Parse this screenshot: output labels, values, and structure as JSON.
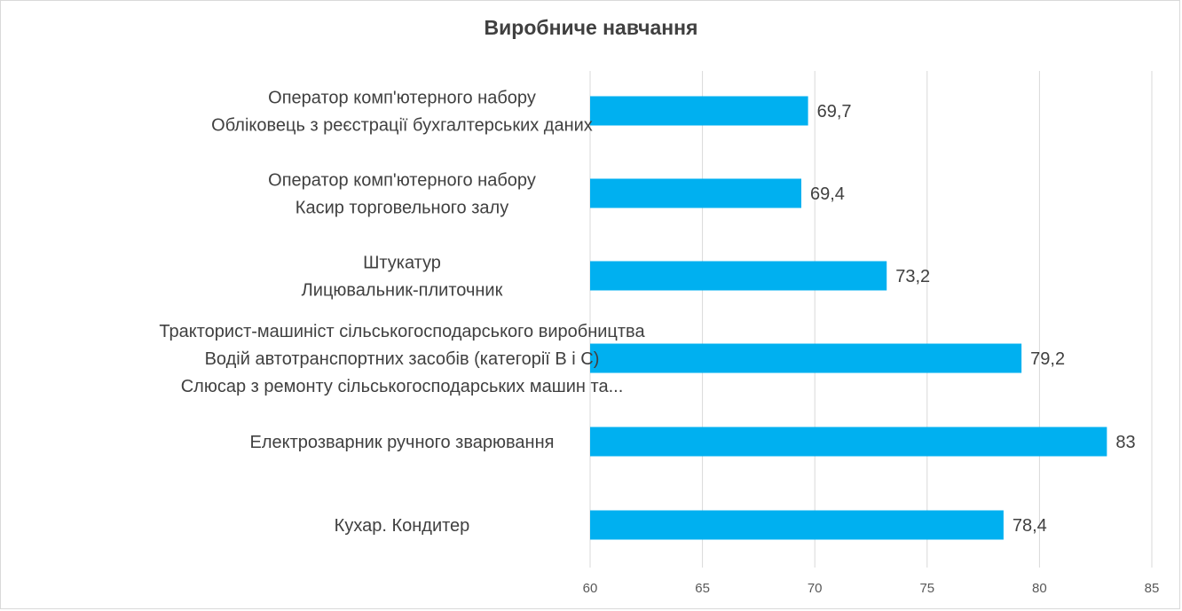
{
  "chart_data": {
    "type": "bar",
    "orientation": "horizontal",
    "title": "Виробниче навчання",
    "categories": [
      [
        "Оператор комп'ютерного набору",
        "Обліковець з реєстрації бухгалтерських даних"
      ],
      [
        "Оператор комп'ютерного набору",
        "Касир торговельного залу"
      ],
      [
        "Штукатур",
        "Лицювальник-плиточник"
      ],
      [
        "Тракторист-машиніст сільськогосподарського виробництва",
        "Водій автотранспортних засобів (категорії В і С)",
        "Слюсар з ремонту сільськогосподарських машин та..."
      ],
      [
        "Електрозварник ручного зварювання"
      ],
      [
        "Кухар. Кондитер"
      ]
    ],
    "values": [
      69.7,
      69.4,
      73.2,
      79.2,
      83,
      78.4
    ],
    "value_labels": [
      "69,7",
      "69,4",
      "73,2",
      "79,2",
      "83",
      "78,4"
    ],
    "xlim": [
      60,
      85
    ],
    "xticks": [
      "60",
      "65",
      "70",
      "75",
      "80",
      "85"
    ],
    "grid": true,
    "bar_color": "#00b0f0",
    "grid_color": "#d9d9d9"
  }
}
